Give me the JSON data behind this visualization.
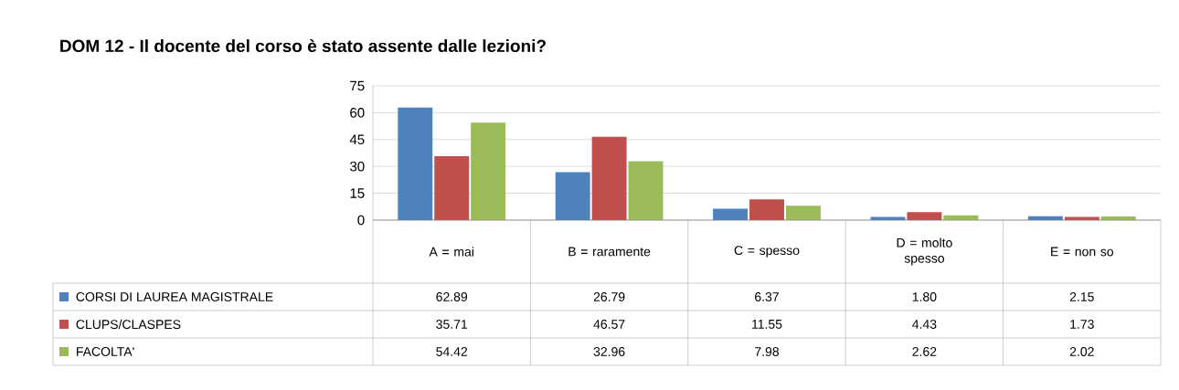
{
  "chart_data": {
    "type": "bar",
    "title": "DOM 12 - Il docente del corso è stato assente dalle lezioni?",
    "categories": [
      "A = mai",
      "B = raramente",
      "C = spesso",
      "D = molto spesso",
      "E = non so"
    ],
    "series": [
      {
        "name": "CORSI DI LAUREA MAGISTRALE",
        "color": "#4f81bd",
        "values": [
          62.89,
          26.79,
          6.37,
          1.8,
          2.15
        ],
        "value_labels": [
          "62.89",
          "26.79",
          "6.37",
          "1.80",
          "2.15"
        ]
      },
      {
        "name": "CLUPS/CLASPES",
        "color": "#c0504d",
        "values": [
          35.71,
          46.57,
          11.55,
          4.43,
          1.73
        ],
        "value_labels": [
          "35.71",
          "46.57",
          "11.55",
          "4.43",
          "1.73"
        ]
      },
      {
        "name": "FACOLTA'",
        "color": "#9bbb59",
        "values": [
          54.42,
          32.96,
          7.98,
          2.62,
          2.02
        ],
        "value_labels": [
          "54.42",
          "32.96",
          "7.98",
          "2.62",
          "2.02"
        ]
      }
    ],
    "ylim": [
      0,
      75
    ],
    "yticks": [
      0,
      15,
      30,
      45,
      60,
      75
    ],
    "grid": "y",
    "legend": "bottom"
  }
}
